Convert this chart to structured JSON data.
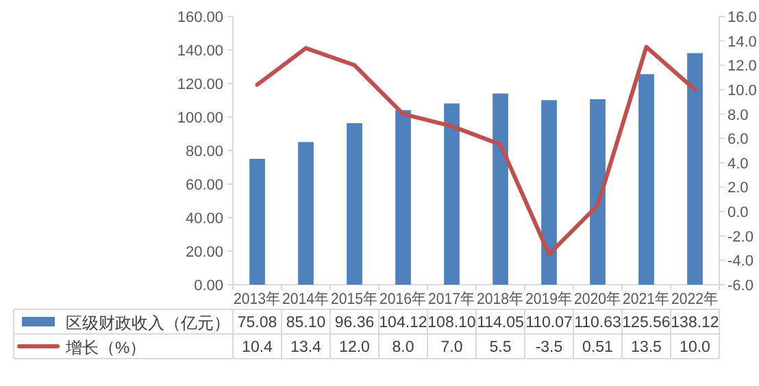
{
  "chart_data": {
    "type": "bar",
    "categories": [
      "2013年",
      "2014年",
      "2015年",
      "2016年",
      "2017年",
      "2018年",
      "2019年",
      "2020年",
      "2021年",
      "2022年"
    ],
    "series": [
      {
        "name": "区级财政收入（亿元）",
        "color": "#4f81bd",
        "values": [
          75.08,
          85.1,
          96.36,
          104.12,
          108.1,
          114.05,
          110.07,
          110.63,
          125.56,
          138.12
        ],
        "value_labels": [
          "75.08",
          "85.10",
          "96.36",
          "104.12",
          "108.10",
          "114.05",
          "110.07",
          "110.63",
          "125.56",
          "138.12"
        ]
      },
      {
        "name": "增长（%）",
        "type": "line",
        "axis": "y2",
        "color": "#c0504d",
        "values": [
          10.4,
          13.4,
          12.0,
          8.0,
          7.0,
          5.5,
          -3.5,
          0.51,
          13.5,
          10.0
        ],
        "value_labels": [
          "10.4",
          "13.4",
          "12.0",
          "8.0",
          "7.0",
          "5.5",
          "-3.5",
          "0.51",
          "13.5",
          "10.0"
        ]
      }
    ],
    "ylim": [
      0,
      160
    ],
    "yticks": [
      {
        "value": 0,
        "label": "0.00"
      },
      {
        "value": 20,
        "label": "20.00"
      },
      {
        "value": 40,
        "label": "40.00"
      },
      {
        "value": 60,
        "label": "60.00"
      },
      {
        "value": 80,
        "label": "80.00"
      },
      {
        "value": 100,
        "label": "100.00"
      },
      {
        "value": 120,
        "label": "120.00"
      },
      {
        "value": 140,
        "label": "140.00"
      },
      {
        "value": 160,
        "label": "160.00"
      }
    ],
    "y2lim": [
      -6,
      16
    ],
    "y2ticks": [
      {
        "value": -6,
        "label": "-6.0"
      },
      {
        "value": -4,
        "label": "-4.0"
      },
      {
        "value": -2,
        "label": "-2.0"
      },
      {
        "value": 0,
        "label": "0.0"
      },
      {
        "value": 2,
        "label": "2.0"
      },
      {
        "value": 4,
        "label": "4.0"
      },
      {
        "value": 6,
        "label": "6.0"
      },
      {
        "value": 8,
        "label": "8.0"
      },
      {
        "value": 10,
        "label": "10.0"
      },
      {
        "value": 12,
        "label": "12.0"
      },
      {
        "value": 14,
        "label": "14.0"
      },
      {
        "value": 16,
        "label": "16.0"
      }
    ],
    "grid": false,
    "legend": "bottom",
    "marker": "none",
    "line_style": "solid"
  }
}
